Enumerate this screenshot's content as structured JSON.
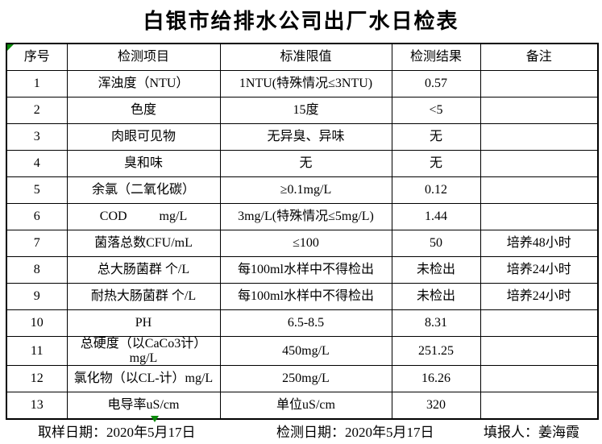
{
  "title": "白银市给排水公司出厂水日检表",
  "colors": {
    "marker_green": "#0b8a0b",
    "border": "#000000",
    "background": "#ffffff"
  },
  "table": {
    "headers": {
      "no": "序号",
      "item": "检测项目",
      "limit": "标准限值",
      "result": "检测结果",
      "remark": "备注"
    },
    "rows": [
      {
        "no": "1",
        "item": "浑浊度（NTU）",
        "limit": "1NTU(特殊情况≤3NTU)",
        "result": "0.57",
        "remark": ""
      },
      {
        "no": "2",
        "item": "色度",
        "limit": "15度",
        "result": "<5",
        "remark": ""
      },
      {
        "no": "3",
        "item": "肉眼可见物",
        "limit": "无异臭、异味",
        "result": "无",
        "remark": ""
      },
      {
        "no": "4",
        "item": "臭和味",
        "limit": "无",
        "result": "无",
        "remark": ""
      },
      {
        "no": "5",
        "item": "余氯（二氧化碳）",
        "limit": "≥0.1mg/L",
        "result": "0.12",
        "remark": ""
      },
      {
        "no": "6",
        "item": "COD          mg/L",
        "limit": "3mg/L(特殊情况≤5mg/L)",
        "result": "1.44",
        "remark": ""
      },
      {
        "no": "7",
        "item": "菌落总数CFU/mL",
        "limit": "≤100",
        "result": "50",
        "remark": "培养48小时"
      },
      {
        "no": "8",
        "item": "总大肠菌群 个/L",
        "limit": "每100ml水样中不得检出",
        "result": "未检出",
        "remark": "培养24小时"
      },
      {
        "no": "9",
        "item": "耐热大肠菌群 个/L",
        "limit": "每100ml水样中不得检出",
        "result": "未检出",
        "remark": "培养24小时"
      },
      {
        "no": "10",
        "item": "PH",
        "limit": "6.5-8.5",
        "result": "8.31",
        "remark": ""
      },
      {
        "no": "11",
        "item": "总硬度（以CaCo3计）mg/L",
        "limit": "450mg/L",
        "result": "251.25",
        "remark": ""
      },
      {
        "no": "12",
        "item": "氯化物（以CL-计）mg/L",
        "limit": "250mg/L",
        "result": "16.26",
        "remark": ""
      },
      {
        "no": "13",
        "item": "电导率uS/cm",
        "limit": "单位uS/cm",
        "result": "320",
        "remark": ""
      }
    ]
  },
  "footer": {
    "sampling_date": "取样日期：2020年5月17日",
    "testing_date": "检测日期：2020年5月17日",
    "reporter": "填报人：姜海霞"
  },
  "icons": {
    "corner_marker": "green-corner-triangle",
    "below_marker": "green-down-triangle"
  }
}
